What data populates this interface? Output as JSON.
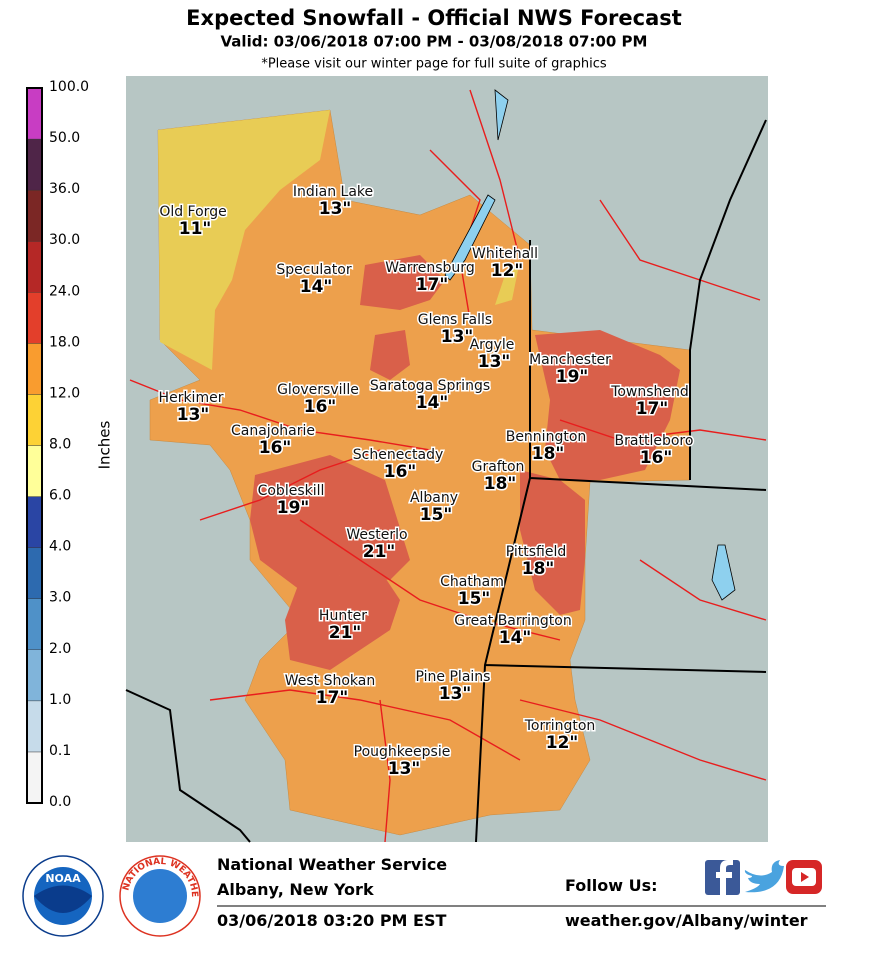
{
  "header": {
    "title": "Expected Snowfall - Official NWS Forecast",
    "subtitle": "Valid: 03/06/2018 07:00 PM - 03/08/2018 07:00 PM",
    "note": "*Please visit our winter page for full suite of graphics"
  },
  "legend": {
    "label": "Inches",
    "ticks": [
      "0.0",
      "0.1",
      "1.0",
      "2.0",
      "3.0",
      "4.0",
      "6.0",
      "8.0",
      "12.0",
      "18.0",
      "24.0",
      "30.0",
      "36.0",
      "50.0",
      "100.0"
    ],
    "colors": [
      "#f4f4f4",
      "#c6dbea",
      "#80b4da",
      "#4f91c8",
      "#2d6aaf",
      "#2a45a4",
      "#ffff99",
      "#fdd235",
      "#f99c2f",
      "#e33f2b",
      "#b52826",
      "#7b2725",
      "#4f2548",
      "#c83dc3"
    ]
  },
  "cities": [
    {
      "name": "Old Forge",
      "amount": "11\""
    },
    {
      "name": "Indian Lake",
      "amount": "13\""
    },
    {
      "name": "Whitehall",
      "amount": "12\""
    },
    {
      "name": "Speculator",
      "amount": "14\""
    },
    {
      "name": "Warrensburg",
      "amount": "17\""
    },
    {
      "name": "Glens Falls",
      "amount": "13\""
    },
    {
      "name": "Argyle",
      "amount": "13\""
    },
    {
      "name": "Manchester",
      "amount": "19\""
    },
    {
      "name": "Herkimer",
      "amount": "13\""
    },
    {
      "name": "Gloversville",
      "amount": "16\""
    },
    {
      "name": "Saratoga Springs",
      "amount": "14\""
    },
    {
      "name": "Townshend",
      "amount": "17\""
    },
    {
      "name": "Canajoharie",
      "amount": "16\""
    },
    {
      "name": "Bennington",
      "amount": "18\""
    },
    {
      "name": "Brattleboro",
      "amount": "16\""
    },
    {
      "name": "Schenectady",
      "amount": "16\""
    },
    {
      "name": "Grafton",
      "amount": "18\""
    },
    {
      "name": "Cobleskill",
      "amount": "19\""
    },
    {
      "name": "Albany",
      "amount": "15\""
    },
    {
      "name": "Westerlo",
      "amount": "21\""
    },
    {
      "name": "Pittsfield",
      "amount": "18\""
    },
    {
      "name": "Chatham",
      "amount": "15\""
    },
    {
      "name": "Hunter",
      "amount": "21\""
    },
    {
      "name": "Great Barrington",
      "amount": "14\""
    },
    {
      "name": "West Shokan",
      "amount": "17\""
    },
    {
      "name": "Pine Plains",
      "amount": "13\""
    },
    {
      "name": "Torrington",
      "amount": "12\""
    },
    {
      "name": "Poughkeepsie",
      "amount": "13\""
    }
  ],
  "footer": {
    "office": "National Weather Service",
    "location": "Albany, New York",
    "issued": "03/06/2018 03:20 PM EST",
    "follow": "Follow Us:",
    "url": "weather.gov/Albany/winter",
    "noaa_logo": "NOAA",
    "nws_logo": "NATIONAL WEATHER SERVICE"
  }
}
